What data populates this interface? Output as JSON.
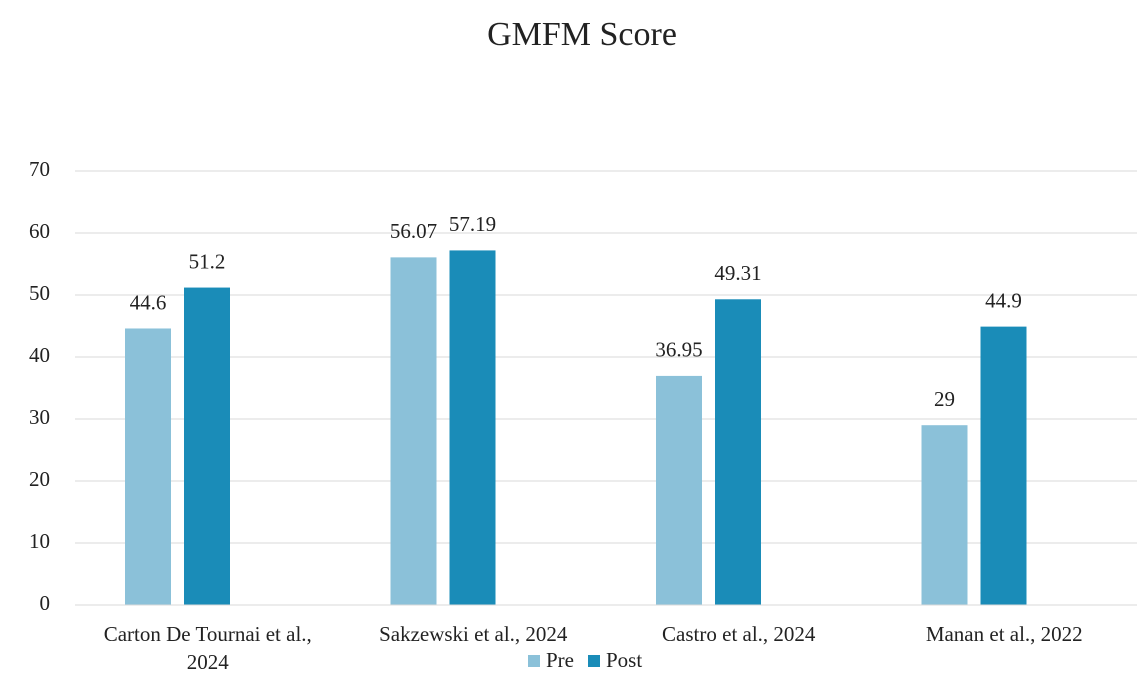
{
  "chart_data": {
    "type": "bar",
    "title": "GMFM Score",
    "categories": [
      "Carton De Tournai et al., 2024",
      "Sakzewski et al., 2024",
      "Castro et al., 2024",
      "Manan et al., 2022"
    ],
    "series": [
      {
        "name": "Pre",
        "color": "#8bc1d9",
        "values": [
          44.6,
          56.07,
          36.95,
          29
        ]
      },
      {
        "name": "Post",
        "color": "#1a8cb8",
        "values": [
          51.2,
          57.19,
          49.31,
          44.9
        ]
      }
    ],
    "ylim": [
      0,
      70
    ],
    "yticks": [
      0,
      10,
      20,
      30,
      40,
      50,
      60,
      70
    ],
    "grid": true,
    "legend": "bottom"
  }
}
